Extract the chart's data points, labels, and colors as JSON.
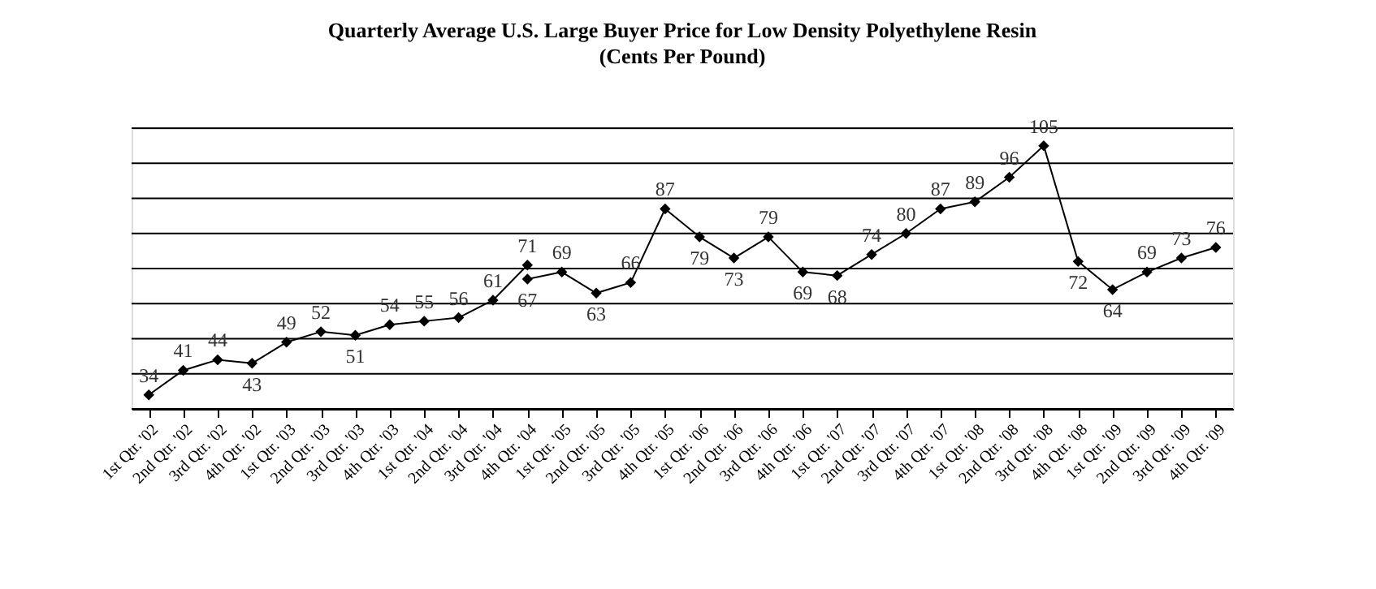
{
  "chart_data": {
    "type": "line",
    "title": "Quarterly Average U.S. Large Buyer Price for Low Density Polyethylene Resin",
    "subtitle": "(Cents Per Pound)",
    "categories": [
      "1st Qtr. '02",
      "2nd Qtr. '02",
      "3rd Qtr. '02",
      "4th Qtr. '02",
      "1st Qtr. '03",
      "2nd Qtr. '03",
      "3rd Qtr. '03",
      "4th Qtr. '03",
      "1st Qtr. '04",
      "2nd Qtr. '04",
      "3rd Qtr. '04",
      "4th Qtr. '04",
      "1st Qtr. '05",
      "2nd Qtr. '05",
      "3rd Qtr. '05",
      "4th Qtr. '05",
      "1st Qtr. '06",
      "2nd Qtr. '06",
      "3rd Qtr. '06",
      "4th Qtr. '06",
      "1st Qtr. '07",
      "2nd Qtr. '07",
      "3rd Qtr. '07",
      "4th Qtr. '07",
      "1st Qtr. '08",
      "2nd Qtr. '08",
      "3rd Qtr. '08",
      "4th Qtr. '08",
      "1st Qtr. '09",
      "2nd Qtr. '09",
      "3rd Qtr. '09",
      "4th Qtr. '09"
    ],
    "series": [
      {
        "color": "#000000",
        "values": [
          34,
          41,
          44,
          43,
          49,
          52,
          51,
          54,
          55,
          56,
          61,
          71,
          null,
          null,
          null,
          null,
          null,
          null,
          null,
          null,
          null,
          null,
          null,
          null,
          null,
          null,
          null,
          null,
          null,
          null,
          null,
          null
        ]
      },
      {
        "color": "#000000",
        "values": [
          null,
          null,
          null,
          null,
          null,
          null,
          null,
          null,
          null,
          null,
          null,
          67,
          69,
          63,
          66,
          87,
          79,
          73,
          79,
          69,
          68,
          74,
          80,
          87,
          89,
          96,
          105,
          72,
          64,
          69,
          73,
          76
        ]
      }
    ],
    "ylim": [
      30,
      110
    ],
    "yticks": [
      {
        "value": 30,
        "label": null
      },
      {
        "value": 40,
        "label": null
      },
      {
        "value": 50,
        "label": null
      },
      {
        "value": 60,
        "label": null
      },
      {
        "value": 70,
        "label": null
      },
      {
        "value": 80,
        "label": null
      },
      {
        "value": 90,
        "label": null
      },
      {
        "value": 100,
        "label": null
      },
      {
        "value": 110,
        "label": null
      }
    ],
    "tick_labels": "x",
    "grid": "y",
    "legend": false,
    "marker": "diamond",
    "line_style": "solid",
    "data_labels": true
  }
}
